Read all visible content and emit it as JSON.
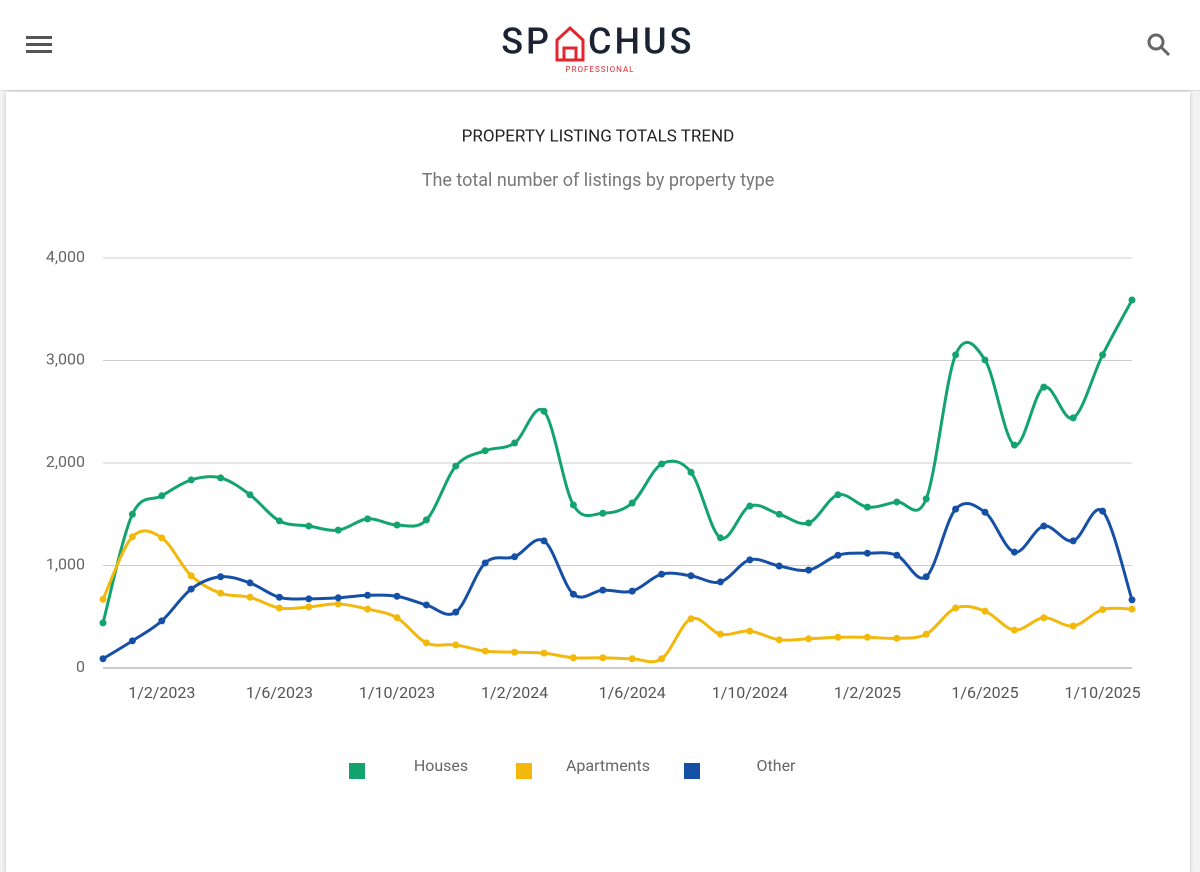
{
  "header": {
    "logo_left": "SP",
    "logo_right": "CHUS",
    "tagline": "PROFESSIONAL"
  },
  "chart_data": {
    "type": "line",
    "title": "PROPERTY LISTING TOTALS TREND",
    "subtitle": "The total number of listings by property type",
    "categories": [
      null,
      null,
      "1/2/2023",
      null,
      null,
      null,
      "1/6/2023",
      null,
      null,
      null,
      "1/10/2023",
      null,
      null,
      null,
      "1/2/2024",
      null,
      null,
      null,
      "1/6/2024",
      null,
      null,
      null,
      "1/10/2024",
      null,
      null,
      null,
      "1/2/2025",
      null,
      null,
      null,
      "1/6/2025",
      null,
      null,
      null,
      "1/10/2025",
      null
    ],
    "series": [
      {
        "name": "Houses",
        "color": "#13a36f",
        "values": [
          440,
          1500,
          1680,
          1835,
          1855,
          1690,
          1435,
          1385,
          1345,
          1455,
          1395,
          1445,
          1970,
          2120,
          2195,
          2505,
          1590,
          1510,
          1610,
          1990,
          1910,
          1270,
          1580,
          1500,
          1415,
          1690,
          1570,
          1620,
          1650,
          3055,
          3005,
          2175,
          2740,
          2440,
          3055,
          3590
        ]
      },
      {
        "name": "Apartments",
        "color": "#f2b90c",
        "values": [
          670,
          1280,
          1270,
          900,
          730,
          690,
          585,
          595,
          625,
          575,
          490,
          245,
          225,
          165,
          155,
          145,
          100,
          100,
          90,
          90,
          480,
          330,
          360,
          275,
          285,
          300,
          300,
          290,
          330,
          585,
          555,
          370,
          490,
          410,
          570,
          575
        ]
      },
      {
        "name": "Other",
        "color": "#1650a6",
        "values": [
          90,
          265,
          460,
          770,
          890,
          830,
          690,
          675,
          685,
          710,
          700,
          615,
          545,
          1025,
          1085,
          1240,
          720,
          760,
          750,
          915,
          900,
          840,
          1055,
          995,
          955,
          1100,
          1120,
          1100,
          890,
          1550,
          1520,
          1130,
          1385,
          1240,
          1530,
          665
        ]
      }
    ],
    "ylim": [
      0,
      4000
    ],
    "yticks": [
      0,
      {
        "value": 1000,
        "label": "1,000"
      },
      {
        "value": 2000,
        "label": "2,000"
      },
      {
        "value": 3000,
        "label": "3,000"
      },
      {
        "value": 4000,
        "label": "4,000"
      }
    ],
    "grid": true,
    "smooth": true,
    "legend": "bottom"
  }
}
